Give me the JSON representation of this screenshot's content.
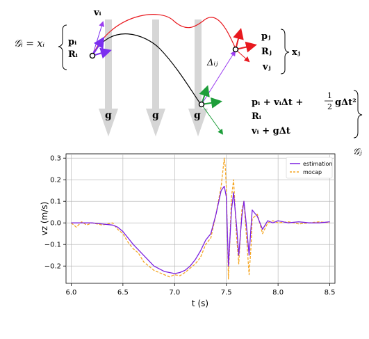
{
  "diagram": {
    "gi_label": "𝒢ᵢ = xᵢ",
    "gi_state": [
      "pᵢ",
      "Rᵢ"
    ],
    "vi_label": "vᵢ",
    "xj_state": [
      "pⱼ",
      "Rⱼ",
      "vⱼ"
    ],
    "xj_label": "xⱼ",
    "delta_label": "Δᵢⱼ",
    "gravity_label": "g",
    "gj_lines": [
      "pᵢ + vᵢΔt + ",
      "Rᵢ",
      "vᵢ + gΔt"
    ],
    "gj_half_num": "1",
    "gj_half_den": "2",
    "gj_tail": "gΔt²",
    "gj_label": "𝒢ⱼ",
    "colors": {
      "red": "#e8191f",
      "black": "#000000",
      "blue": "#7b2ff0",
      "green": "#1e9e3a",
      "purple": "#9a3cf0",
      "gray": "#d6d6d6"
    }
  },
  "chart_data": {
    "type": "line",
    "xlabel": "t (s)",
    "ylabel": "vz (m/s)",
    "xlim": [
      5.95,
      8.55
    ],
    "ylim": [
      -0.28,
      0.32
    ],
    "xticks": [
      "6.0",
      "6.5",
      "7.0",
      "7.5",
      "8.0",
      "8.5"
    ],
    "yticks": [
      "0.3",
      "0.2",
      "0.1",
      "0.0",
      "−0.1",
      "−0.2"
    ],
    "grid": true,
    "legend_position": "top-right",
    "series": [
      {
        "name": "estimation",
        "color": "#7b1fe0",
        "style": "solid",
        "x": [
          6.0,
          6.1,
          6.2,
          6.3,
          6.4,
          6.45,
          6.5,
          6.55,
          6.6,
          6.7,
          6.8,
          6.9,
          7.0,
          7.05,
          7.1,
          7.15,
          7.2,
          7.25,
          7.3,
          7.35,
          7.4,
          7.45,
          7.48,
          7.5,
          7.52,
          7.55,
          7.57,
          7.6,
          7.62,
          7.65,
          7.67,
          7.7,
          7.72,
          7.75,
          7.8,
          7.85,
          7.9,
          7.95,
          8.0,
          8.1,
          8.2,
          8.3,
          8.4,
          8.5
        ],
        "y": [
          0.0,
          0.0,
          0.0,
          -0.005,
          -0.01,
          -0.02,
          -0.04,
          -0.07,
          -0.1,
          -0.15,
          -0.2,
          -0.225,
          -0.235,
          -0.23,
          -0.22,
          -0.2,
          -0.17,
          -0.13,
          -0.08,
          -0.05,
          0.04,
          0.15,
          0.17,
          0.12,
          -0.2,
          0.06,
          0.14,
          -0.02,
          -0.15,
          0.03,
          0.1,
          -0.04,
          -0.15,
          0.06,
          0.03,
          -0.03,
          0.01,
          0.0,
          0.01,
          0.0,
          0.005,
          0.0,
          0.0,
          0.005
        ]
      },
      {
        "name": "mocap",
        "color": "#f5a623",
        "style": "dashed",
        "x": [
          6.0,
          6.05,
          6.1,
          6.15,
          6.2,
          6.3,
          6.4,
          6.45,
          6.5,
          6.55,
          6.6,
          6.65,
          6.7,
          6.8,
          6.9,
          6.95,
          7.0,
          7.05,
          7.1,
          7.15,
          7.2,
          7.25,
          7.3,
          7.35,
          7.4,
          7.45,
          7.48,
          7.49,
          7.5,
          7.52,
          7.55,
          7.57,
          7.6,
          7.62,
          7.65,
          7.67,
          7.7,
          7.72,
          7.74,
          7.75,
          7.8,
          7.85,
          7.9,
          7.95,
          8.0,
          8.1,
          8.2,
          8.3,
          8.4,
          8.5
        ],
        "y": [
          0.0,
          -0.02,
          0.005,
          -0.01,
          0.0,
          -0.01,
          0.0,
          -0.03,
          -0.05,
          -0.09,
          -0.12,
          -0.14,
          -0.18,
          -0.22,
          -0.24,
          -0.25,
          -0.24,
          -0.245,
          -0.23,
          -0.21,
          -0.19,
          -0.16,
          -0.1,
          -0.07,
          0.04,
          0.17,
          0.3,
          0.26,
          0.16,
          -0.26,
          0.12,
          0.2,
          -0.07,
          -0.19,
          0.06,
          0.1,
          -0.1,
          -0.24,
          -0.1,
          0.02,
          0.04,
          -0.05,
          0.0,
          0.01,
          0.0,
          0.005,
          -0.005,
          0.0,
          0.005,
          0.0
        ]
      }
    ]
  }
}
